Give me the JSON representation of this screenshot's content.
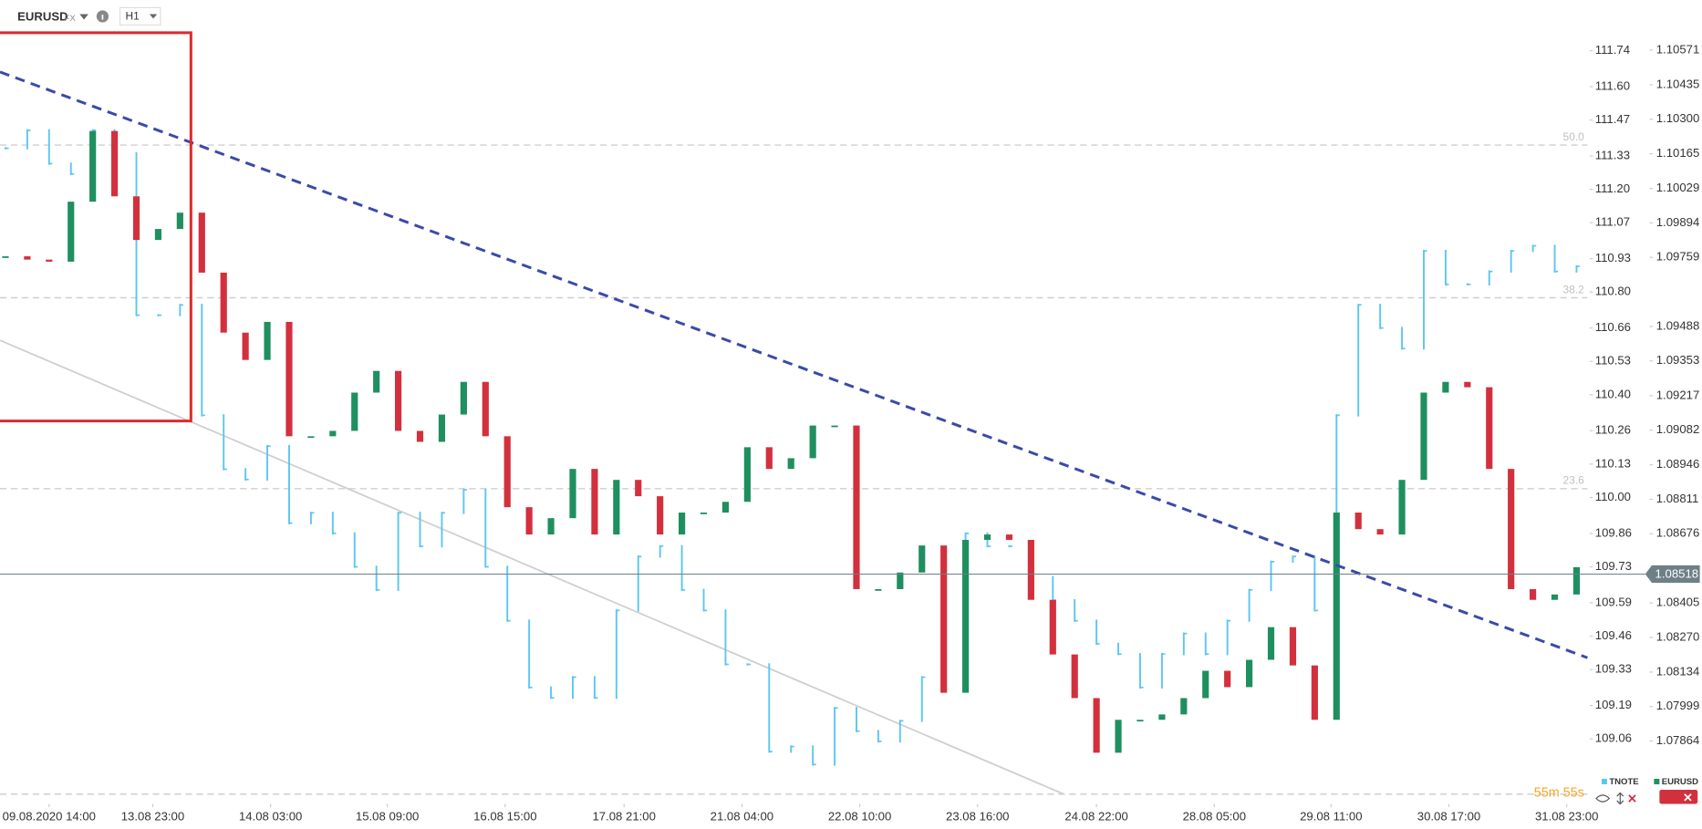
{
  "toolbar": {
    "symbol": "EURUSD",
    "market": "FX",
    "interval": "H1"
  },
  "countdown": "55m 55s",
  "fib_labels": [
    "50.0",
    "38.2",
    "23.6"
  ],
  "chart_data": {
    "type": "candlestick",
    "xlim": [
      -0.25,
      72.5
    ],
    "xticks": [
      {
        "value": 2,
        "label": "09.08.2020  14:00"
      },
      {
        "value": 6.75,
        "label": "13.08  23:00"
      },
      {
        "value": 12.15,
        "label": "14.08  03:00"
      },
      {
        "value": 17.5,
        "label": "15.08  09:00"
      },
      {
        "value": 22.9,
        "label": "16.08  15:00"
      },
      {
        "value": 28.35,
        "label": "17.08  21:00"
      },
      {
        "value": 33.75,
        "label": "21.08  04:00"
      },
      {
        "value": 39.15,
        "label": "22.08  10:00"
      },
      {
        "value": 44.55,
        "label": "23.08  16:00"
      },
      {
        "value": 50,
        "label": "24.08  22:00"
      },
      {
        "value": 55.4,
        "label": "28.08  05:00"
      },
      {
        "value": 60.75,
        "label": "29.08  11:00"
      },
      {
        "value": 66.15,
        "label": "30.08  17:00"
      },
      {
        "value": 71.55,
        "label": "31.08  23:00"
      }
    ],
    "ylim": [
      1.07626,
      1.10639
    ],
    "yticks": [
      1.10571,
      1.10435,
      {
        "value": 1.103,
        "label": "1.10300"
      },
      1.10165,
      1.10029,
      1.09894,
      1.09759,
      1.09488,
      1.09353,
      1.09217,
      1.09082,
      1.08946,
      1.08811,
      1.08676,
      1.08405,
      {
        "value": 1.0827,
        "label": "1.08270"
      },
      1.08134,
      1.07999,
      1.07864
    ],
    "y2lim": [
      108.815,
      111.81
    ],
    "y2ticks": [
      111.74,
      {
        "value": 111.6,
        "label": "111.60"
      },
      111.47,
      111.33,
      {
        "value": 111.2,
        "label": "111.20"
      },
      111.07,
      110.93,
      {
        "value": 110.8,
        "label": "110.80"
      },
      110.66,
      110.53,
      {
        "value": 110.4,
        "label": "110.40"
      },
      110.26,
      110.13,
      {
        "value": 110,
        "label": "110.00"
      },
      109.86,
      109.73,
      109.59,
      109.46,
      109.33,
      109.19,
      109.06
    ],
    "last_price": 1.08518,
    "series": [
      {
        "name": "TNOTE",
        "axis": "y2",
        "color": "#5bc6f2",
        "values": [
          111.36,
          111.43,
          111.3,
          111.26,
          111.43,
          111.34,
          110.71,
          110.71,
          110.75,
          110.32,
          110.11,
          110.07,
          110.2,
          109.9,
          109.94,
          109.86,
          109.73,
          109.64,
          109.94,
          109.81,
          109.94,
          110.03,
          109.73,
          109.52,
          109.26,
          109.22,
          109.3,
          109.22,
          109.56,
          109.77,
          109.81,
          109.64,
          109.56,
          109.35,
          109.35,
          109.01,
          109.03,
          108.96,
          109.18,
          109.09,
          109.05,
          109.13,
          109.3,
          109.77,
          109.86,
          109.81,
          109.81,
          109.69,
          109.6,
          109.52,
          109.43,
          109.39,
          109.26,
          109.39,
          109.47,
          109.39,
          109.52,
          109.64,
          109.75,
          109.77,
          109.56,
          110.32,
          110.75,
          110.66,
          110.58,
          110.96,
          110.83,
          110.83,
          110.88,
          110.96,
          110.98,
          110.88,
          110.9
        ]
      },
      {
        "name": "EURUSD",
        "up_color": "#1f8f5f",
        "down_color": "#d3303d",
        "values": [
          1.09763,
          1.0975,
          1.09742,
          1.09977,
          1.10254,
          1.09998,
          1.09827,
          1.0987,
          1.09934,
          1.09699,
          1.09464,
          1.09357,
          1.09506,
          1.09058,
          1.09058,
          1.09079,
          1.09229,
          1.09314,
          1.09079,
          1.09036,
          1.09143,
          1.09271,
          1.09058,
          1.0878,
          1.08673,
          1.08737,
          1.0893,
          1.08673,
          1.08887,
          1.08823,
          1.08673,
          1.08759,
          1.08759,
          1.08801,
          1.09015,
          1.0893,
          1.08972,
          1.091,
          1.091,
          1.08459,
          1.08459,
          1.08524,
          1.0863,
          1.08053,
          1.08652,
          1.08673,
          1.08652,
          1.08417,
          1.08203,
          1.08032,
          1.07818,
          1.07947,
          1.07947,
          1.07968,
          1.08032,
          1.08139,
          1.08075,
          1.08182,
          1.0831,
          1.0816,
          1.07947,
          1.08759,
          1.08694,
          1.08673,
          1.08887,
          1.09229,
          1.09271,
          1.0925,
          1.0893,
          1.08459,
          1.08417,
          1.08438,
          1.08545
        ]
      }
    ]
  }
}
